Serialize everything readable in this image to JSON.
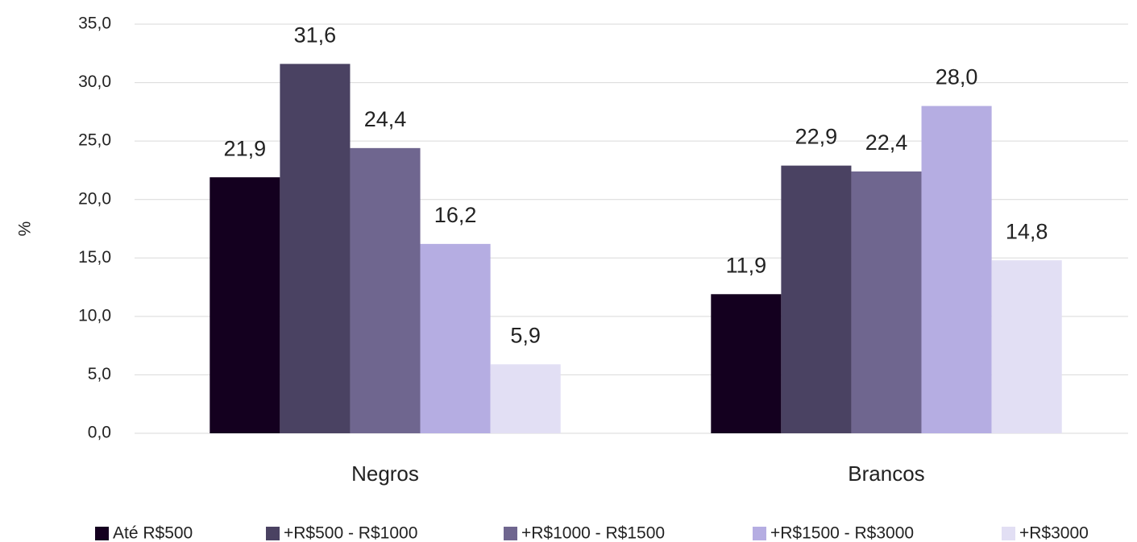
{
  "chart_data": {
    "type": "bar",
    "y_label": "%",
    "categories": [
      "Negros",
      "Brancos"
    ],
    "series": [
      {
        "name": "Até R$500",
        "color": "#14001f",
        "values": [
          21.9,
          11.9
        ],
        "value_labels": [
          "21,9",
          "11,9"
        ]
      },
      {
        "name": "+R$500 - R$1000",
        "color": "#4a4262",
        "values": [
          31.6,
          22.9
        ],
        "value_labels": [
          "31,6",
          "22,9"
        ]
      },
      {
        "name": "+R$1000 - R$1500",
        "color": "#6f668f",
        "values": [
          24.4,
          22.4
        ],
        "value_labels": [
          "24,4",
          "22,4"
        ]
      },
      {
        "name": "+R$1500 - R$3000",
        "color": "#b5ade2",
        "values": [
          16.2,
          28.0
        ],
        "value_labels": [
          "16,2",
          "28,0"
        ]
      },
      {
        "name": "+R$3000",
        "color": "#e2dff4",
        "values": [
          5.9,
          14.8
        ],
        "value_labels": [
          "5,9",
          "14,8"
        ]
      }
    ],
    "ylim": [
      0,
      35
    ],
    "yticks": [
      {
        "value": 0,
        "label": "0,0"
      },
      {
        "value": 5,
        "label": "5,0"
      },
      {
        "value": 10,
        "label": "10,0"
      },
      {
        "value": 15,
        "label": "15,0"
      },
      {
        "value": 20,
        "label": "20,0"
      },
      {
        "value": 25,
        "label": "25,0"
      },
      {
        "value": 30,
        "label": "30,0"
      },
      {
        "value": 35,
        "label": "35,0"
      }
    ],
    "grid": true,
    "legend": "bottom"
  }
}
